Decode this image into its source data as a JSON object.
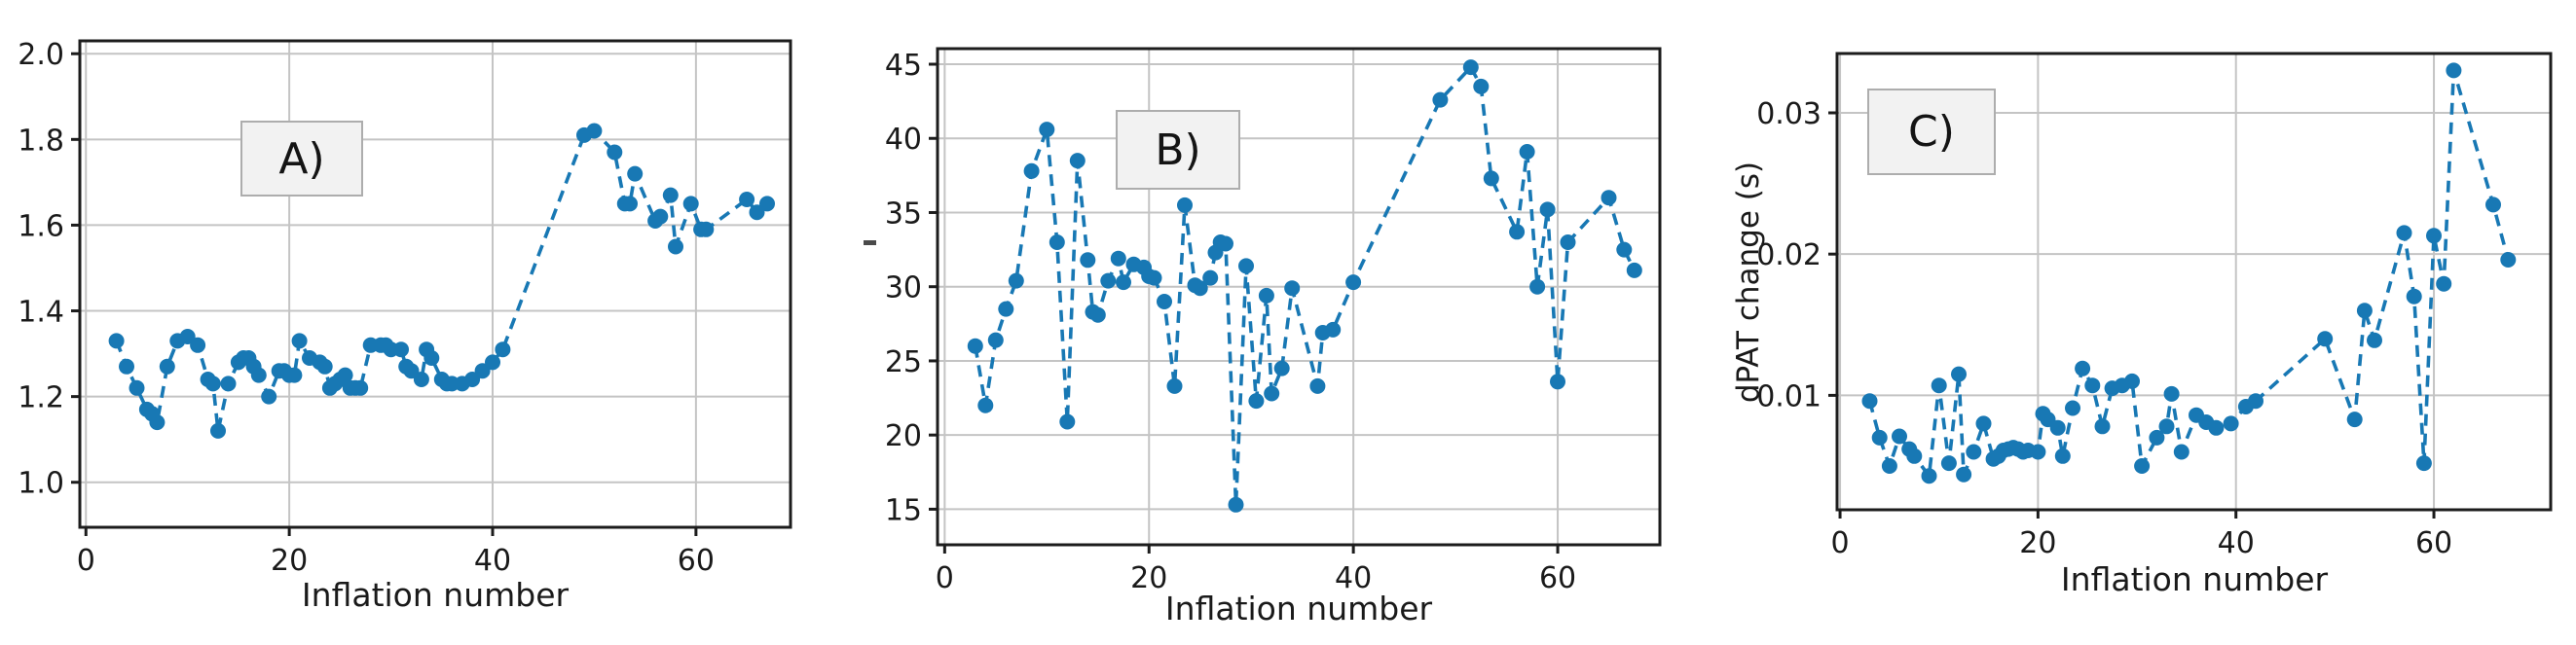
{
  "colors": {
    "series": "#1878b4",
    "grid": "#c4c4c4",
    "spine": "#1c1c1c",
    "text": "#1a1a1a",
    "label_box_bg": "#f2f2f2",
    "label_box_border": "#adadad"
  },
  "chart_data": [
    {
      "type": "line",
      "panel_label": "A)",
      "xlabel": "Inflation number",
      "ylabel": "",
      "linestyle": "dashed",
      "marker": "circle",
      "grid": true,
      "xlim": [
        -0.6,
        69.3
      ],
      "ylim": [
        0.895,
        2.03
      ],
      "xticks": [
        0,
        20,
        40,
        60
      ],
      "xtick_labels": [
        "0",
        "20",
        "40",
        "60"
      ],
      "yticks": [
        1.0,
        1.2,
        1.4,
        1.6,
        1.8,
        2.0
      ],
      "ytick_labels": [
        "1.0",
        "1.2",
        "1.4",
        "1.6",
        "1.8",
        "2.0"
      ],
      "points": [
        [
          3,
          1.33
        ],
        [
          4,
          1.27
        ],
        [
          5,
          1.22
        ],
        [
          6,
          1.17
        ],
        [
          6.5,
          1.16
        ],
        [
          7,
          1.14
        ],
        [
          8,
          1.27
        ],
        [
          9,
          1.33
        ],
        [
          10,
          1.34
        ],
        [
          11,
          1.32
        ],
        [
          12,
          1.24
        ],
        [
          12.5,
          1.23
        ],
        [
          13,
          1.12
        ],
        [
          14,
          1.23
        ],
        [
          15,
          1.28
        ],
        [
          15.5,
          1.29
        ],
        [
          16,
          1.29
        ],
        [
          16.5,
          1.27
        ],
        [
          17,
          1.25
        ],
        [
          18,
          1.2
        ],
        [
          19,
          1.26
        ],
        [
          19.5,
          1.26
        ],
        [
          20,
          1.25
        ],
        [
          20.5,
          1.25
        ],
        [
          21,
          1.33
        ],
        [
          22,
          1.29
        ],
        [
          23,
          1.28
        ],
        [
          23.5,
          1.27
        ],
        [
          24,
          1.22
        ],
        [
          24.5,
          1.23
        ],
        [
          25,
          1.24
        ],
        [
          25.5,
          1.25
        ],
        [
          26,
          1.22
        ],
        [
          26.5,
          1.22
        ],
        [
          27,
          1.22
        ],
        [
          28,
          1.32
        ],
        [
          29,
          1.32
        ],
        [
          29.5,
          1.32
        ],
        [
          30,
          1.31
        ],
        [
          31,
          1.31
        ],
        [
          31.5,
          1.27
        ],
        [
          32,
          1.26
        ],
        [
          33,
          1.24
        ],
        [
          33.5,
          1.31
        ],
        [
          34,
          1.29
        ],
        [
          35,
          1.24
        ],
        [
          35.5,
          1.23
        ],
        [
          36,
          1.23
        ],
        [
          37,
          1.23
        ],
        [
          38,
          1.24
        ],
        [
          39,
          1.26
        ],
        [
          40,
          1.28
        ],
        [
          41,
          1.31
        ],
        [
          49,
          1.81
        ],
        [
          50,
          1.82
        ],
        [
          52,
          1.77
        ],
        [
          53,
          1.65
        ],
        [
          53.5,
          1.65
        ],
        [
          54,
          1.72
        ],
        [
          56,
          1.61
        ],
        [
          56.5,
          1.62
        ],
        [
          57.5,
          1.67
        ],
        [
          58,
          1.55
        ],
        [
          59.5,
          1.65
        ],
        [
          60.5,
          1.59
        ],
        [
          61,
          1.59
        ],
        [
          65,
          1.66
        ],
        [
          66,
          1.63
        ],
        [
          67,
          1.65
        ]
      ]
    },
    {
      "type": "line",
      "panel_label": "B)",
      "xlabel": "Inflation number",
      "ylabel": "",
      "linestyle": "dashed",
      "marker": "circle",
      "grid": true,
      "xlim": [
        -0.7,
        70.0
      ],
      "ylim": [
        12.6,
        46.05
      ],
      "xticks": [
        0,
        20,
        40,
        60
      ],
      "xtick_labels": [
        "0",
        "20",
        "40",
        "60"
      ],
      "yticks": [
        15,
        20,
        25,
        30,
        35,
        40,
        45
      ],
      "ytick_labels": [
        "15",
        "20",
        "25",
        "30",
        "35",
        "40",
        "45"
      ],
      "points": [
        [
          3,
          26
        ],
        [
          4,
          22
        ],
        [
          5,
          26.4
        ],
        [
          6,
          28.5
        ],
        [
          7,
          30.4
        ],
        [
          8.5,
          37.8
        ],
        [
          10,
          40.6
        ],
        [
          11,
          33
        ],
        [
          12,
          20.9
        ],
        [
          13,
          38.5
        ],
        [
          14,
          31.8
        ],
        [
          14.5,
          28.3
        ],
        [
          15,
          28.1
        ],
        [
          16,
          30.4
        ],
        [
          17,
          31.9
        ],
        [
          17.5,
          30.3
        ],
        [
          18.5,
          31.5
        ],
        [
          19.5,
          31.3
        ],
        [
          20,
          30.7
        ],
        [
          20.5,
          30.6
        ],
        [
          21.5,
          29
        ],
        [
          22.5,
          23.3
        ],
        [
          23.5,
          35.5
        ],
        [
          24.5,
          30.1
        ],
        [
          25,
          29.9
        ],
        [
          26,
          30.6
        ],
        [
          26.5,
          32.3
        ],
        [
          27,
          33
        ],
        [
          27.5,
          32.9
        ],
        [
          28.5,
          15.3
        ],
        [
          29.5,
          31.4
        ],
        [
          30.5,
          22.3
        ],
        [
          31.5,
          29.4
        ],
        [
          32,
          22.8
        ],
        [
          33,
          24.5
        ],
        [
          34,
          29.9
        ],
        [
          36.5,
          23.3
        ],
        [
          37,
          26.9
        ],
        [
          38,
          27.1
        ],
        [
          40,
          30.3
        ],
        [
          48.5,
          42.6
        ],
        [
          51.5,
          44.8
        ],
        [
          52.5,
          43.5
        ],
        [
          53.5,
          37.3
        ],
        [
          56,
          33.7
        ],
        [
          57,
          39.1
        ],
        [
          58,
          30
        ],
        [
          59,
          35.2
        ],
        [
          60,
          23.6
        ],
        [
          61,
          33
        ],
        [
          65,
          36
        ],
        [
          66.5,
          32.5
        ],
        [
          67.5,
          31.1
        ]
      ]
    },
    {
      "type": "line",
      "panel_label": "C)",
      "xlabel": "Inflation number",
      "ylabel": "dPAT change (s)",
      "linestyle": "dashed",
      "marker": "circle",
      "grid": true,
      "xlim": [
        -0.3,
        71.8
      ],
      "ylim": [
        0.0019,
        0.0342
      ],
      "xticks": [
        0,
        20,
        40,
        60
      ],
      "xtick_labels": [
        "0",
        "20",
        "40",
        "60"
      ],
      "yticks": [
        0.01,
        0.02,
        0.03
      ],
      "ytick_labels": [
        "0.01",
        "0.02",
        "0.03"
      ],
      "points": [
        [
          3,
          0.0096
        ],
        [
          4,
          0.007
        ],
        [
          5,
          0.005
        ],
        [
          6,
          0.0071
        ],
        [
          7,
          0.0062
        ],
        [
          7.5,
          0.0057
        ],
        [
          9,
          0.0043
        ],
        [
          10,
          0.0107
        ],
        [
          11,
          0.0052
        ],
        [
          12,
          0.0115
        ],
        [
          12.5,
          0.0044
        ],
        [
          13.5,
          0.006
        ],
        [
          14.5,
          0.008
        ],
        [
          15.5,
          0.0055
        ],
        [
          16,
          0.0057
        ],
        [
          16.5,
          0.0061
        ],
        [
          17,
          0.0062
        ],
        [
          17.5,
          0.0063
        ],
        [
          18,
          0.0062
        ],
        [
          18.5,
          0.006
        ],
        [
          19,
          0.0061
        ],
        [
          20,
          0.006
        ],
        [
          20.5,
          0.0087
        ],
        [
          21,
          0.0083
        ],
        [
          22,
          0.0077
        ],
        [
          22.5,
          0.0057
        ],
        [
          23.5,
          0.0091
        ],
        [
          24.5,
          0.0119
        ],
        [
          25.5,
          0.0107
        ],
        [
          26.5,
          0.0078
        ],
        [
          27.5,
          0.0105
        ],
        [
          28.5,
          0.0107
        ],
        [
          29.5,
          0.011
        ],
        [
          30.5,
          0.005
        ],
        [
          32,
          0.007
        ],
        [
          33,
          0.0078
        ],
        [
          33.5,
          0.0101
        ],
        [
          34.5,
          0.006
        ],
        [
          36,
          0.0086
        ],
        [
          37,
          0.0081
        ],
        [
          38,
          0.0077
        ],
        [
          39.5,
          0.008
        ],
        [
          41,
          0.0092
        ],
        [
          42,
          0.0096
        ],
        [
          49,
          0.014
        ],
        [
          52,
          0.0083
        ],
        [
          53,
          0.016
        ],
        [
          54,
          0.0139
        ],
        [
          57,
          0.0215
        ],
        [
          58,
          0.017
        ],
        [
          59,
          0.0052
        ],
        [
          60,
          0.0213
        ],
        [
          61,
          0.0179
        ],
        [
          62,
          0.033
        ],
        [
          66,
          0.0235
        ],
        [
          67.5,
          0.0196
        ]
      ]
    }
  ]
}
